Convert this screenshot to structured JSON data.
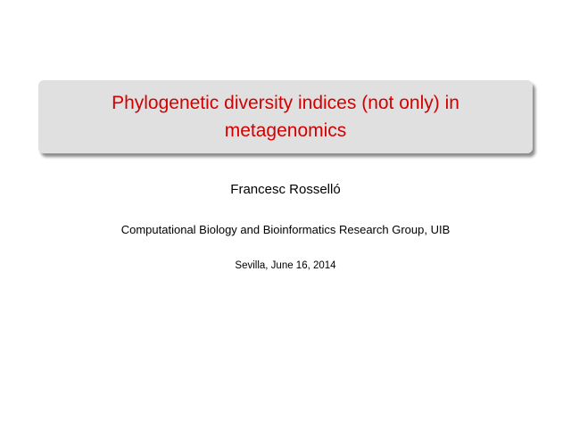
{
  "slide": {
    "title": "Phylogenetic diversity indices (not only) in metagenomics",
    "author": "Francesc Rosselló",
    "institute": "Computational Biology and Bioinformatics Research Group, UIB",
    "date": "Sevilla, June 16, 2014",
    "title_color": "#d40000",
    "title_box_color": "#e0e0e0"
  }
}
